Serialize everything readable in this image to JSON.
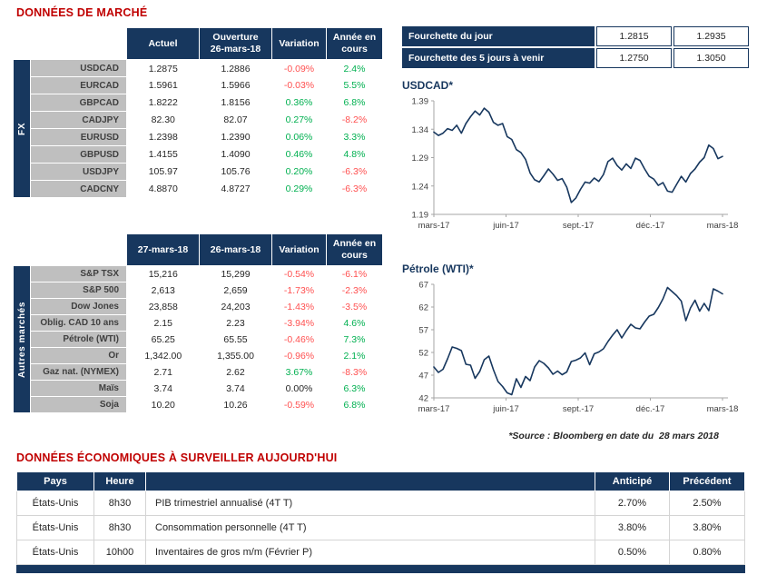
{
  "colors": {
    "navy": "#17375e",
    "title_red": "#c00000",
    "positive_green": "#00b050",
    "negative_red": "#ff5050",
    "label_gray": "#bfbfbf"
  },
  "header": {
    "title": "DONNÉES DE MARCHÉ"
  },
  "fx": {
    "side_label": "FX",
    "headers": {
      "actual": "Actuel",
      "open": "Ouverture\n26-mars-18",
      "variation": "Variation",
      "ytd": "Année en\ncours"
    },
    "rows": [
      {
        "label": "USDCAD",
        "actual": "1.2875",
        "open": "1.2886",
        "variation": "-0.09%",
        "ytd": "2.4%"
      },
      {
        "label": "EURCAD",
        "actual": "1.5961",
        "open": "1.5966",
        "variation": "-0.03%",
        "ytd": "5.5%"
      },
      {
        "label": "GBPCAD",
        "actual": "1.8222",
        "open": "1.8156",
        "variation": "0.36%",
        "ytd": "6.8%"
      },
      {
        "label": "CADJPY",
        "actual": "82.30",
        "open": "82.07",
        "variation": "0.27%",
        "ytd": "-8.2%"
      },
      {
        "label": "EURUSD",
        "actual": "1.2398",
        "open": "1.2390",
        "variation": "0.06%",
        "ytd": "3.3%"
      },
      {
        "label": "GBPUSD",
        "actual": "1.4155",
        "open": "1.4090",
        "variation": "0.46%",
        "ytd": "4.8%"
      },
      {
        "label": "USDJPY",
        "actual": "105.97",
        "open": "105.76",
        "variation": "0.20%",
        "ytd": "-6.3%"
      },
      {
        "label": "CADCNY",
        "actual": "4.8870",
        "open": "4.8727",
        "variation": "0.29%",
        "ytd": "-6.3%"
      }
    ]
  },
  "markets": {
    "side_label": "Autres marchés",
    "headers": {
      "d1": "27-mars-18",
      "d2": "26-mars-18",
      "variation": "Variation",
      "ytd": "Année en\ncours"
    },
    "rows": [
      {
        "label": "S&P TSX",
        "d1": "15,216",
        "d2": "15,299",
        "variation": "-0.54%",
        "ytd": "-6.1%"
      },
      {
        "label": "S&P 500",
        "d1": "2,613",
        "d2": "2,659",
        "variation": "-1.73%",
        "ytd": "-2.3%"
      },
      {
        "label": "Dow Jones",
        "d1": "23,858",
        "d2": "24,203",
        "variation": "-1.43%",
        "ytd": "-3.5%"
      },
      {
        "label": "Oblig. CAD 10 ans",
        "d1": "2.15",
        "d2": "2.23",
        "variation": "-3.94%",
        "ytd": "4.6%"
      },
      {
        "label": "Pétrole (WTI)",
        "d1": "65.25",
        "d2": "65.55",
        "variation": "-0.46%",
        "ytd": "7.3%"
      },
      {
        "label": "Or",
        "d1": "1,342.00",
        "d2": "1,355.00",
        "variation": "-0.96%",
        "ytd": "2.1%"
      },
      {
        "label": "Gaz nat. (NYMEX)",
        "d1": "2.71",
        "d2": "2.62",
        "variation": "3.67%",
        "ytd": "-8.3%"
      },
      {
        "label": "Maïs",
        "d1": "3.74",
        "d2": "3.74",
        "variation": "0.00%",
        "ytd": "6.3%"
      },
      {
        "label": "Soja",
        "d1": "10.20",
        "d2": "10.26",
        "variation": "-0.59%",
        "ytd": "6.8%"
      }
    ]
  },
  "range": {
    "rows": [
      {
        "label": "Fourchette du jour",
        "low": "1.2815",
        "high": "1.2935"
      },
      {
        "label": "Fourchette des 5 jours à venir",
        "low": "1.2750",
        "high": "1.3050"
      }
    ]
  },
  "source_note": "*Source : Bloomberg en date du  28 mars 2018",
  "econ": {
    "title": "DONNÉES ÉCONOMIQUES À SURVEILLER AUJOURD'HUI",
    "headers": {
      "country": "Pays",
      "time": "Heure",
      "desc": "",
      "anticipated": "Anticipé",
      "previous": "Précédent"
    },
    "rows": [
      {
        "country": "États-Unis",
        "time": "8h30",
        "desc": "PIB trimestriel annualisé (4T T)",
        "anticipated": "2.70%",
        "previous": "2.50%"
      },
      {
        "country": "États-Unis",
        "time": "8h30",
        "desc": "Consommation personnelle (4T T)",
        "anticipated": "3.80%",
        "previous": "3.80%"
      },
      {
        "country": "États-Unis",
        "time": "10h00",
        "desc": "Inventaires de gros m/m (Février P)",
        "anticipated": "0.50%",
        "previous": "0.80%"
      }
    ]
  },
  "chart_data": [
    {
      "type": "line",
      "title": "USDCAD*",
      "xticks": [
        "mars-17",
        "juin-17",
        "sept.-17",
        "déc.-17",
        "mars-18"
      ],
      "xtick_pos": [
        0,
        0.25,
        0.5,
        0.75,
        1
      ],
      "ylim": [
        1.19,
        1.39
      ],
      "yticks": [
        1.19,
        1.24,
        1.29,
        1.34,
        1.39
      ],
      "y_decimals": 2,
      "legend": "none",
      "grid": false,
      "values": [
        1.335,
        1.329,
        1.333,
        1.341,
        1.338,
        1.347,
        1.333,
        1.35,
        1.362,
        1.372,
        1.365,
        1.377,
        1.37,
        1.352,
        1.347,
        1.35,
        1.327,
        1.322,
        1.304,
        1.299,
        1.287,
        1.263,
        1.251,
        1.247,
        1.258,
        1.27,
        1.261,
        1.25,
        1.253,
        1.238,
        1.211,
        1.219,
        1.234,
        1.247,
        1.245,
        1.254,
        1.248,
        1.26,
        1.283,
        1.289,
        1.276,
        1.268,
        1.279,
        1.271,
        1.289,
        1.285,
        1.27,
        1.257,
        1.252,
        1.241,
        1.246,
        1.231,
        1.229,
        1.243,
        1.257,
        1.247,
        1.262,
        1.27,
        1.282,
        1.29,
        1.312,
        1.306,
        1.288,
        1.292
      ]
    },
    {
      "type": "line",
      "title": "Pétrole (WTI)*",
      "xticks": [
        "mars-17",
        "juin-17",
        "sept.-17",
        "déc.-17",
        "mars-18"
      ],
      "xtick_pos": [
        0,
        0.25,
        0.5,
        0.75,
        1
      ],
      "ylim": [
        42,
        67
      ],
      "yticks": [
        42,
        47,
        52,
        57,
        62,
        67
      ],
      "y_decimals": 0,
      "legend": "none",
      "grid": false,
      "values": [
        48.8,
        47.6,
        48.3,
        50.6,
        53.2,
        52.9,
        52.4,
        49.4,
        49.2,
        46.3,
        47.8,
        50.4,
        51.2,
        48.2,
        45.6,
        44.5,
        43.1,
        42.7,
        46.2,
        44.3,
        46.7,
        45.8,
        48.8,
        50.2,
        49.6,
        48.6,
        47.2,
        47.9,
        47.1,
        47.7,
        50.0,
        50.3,
        50.8,
        51.9,
        49.3,
        51.7,
        52.1,
        52.8,
        54.4,
        55.8,
        57.0,
        55.2,
        56.8,
        58.2,
        57.4,
        57.2,
        58.7,
        60.0,
        60.4,
        61.9,
        63.8,
        66.3,
        65.4,
        64.5,
        63.3,
        59.0,
        61.8,
        63.5,
        61.1,
        62.8,
        61.2,
        66.0,
        65.5,
        64.9
      ]
    }
  ]
}
